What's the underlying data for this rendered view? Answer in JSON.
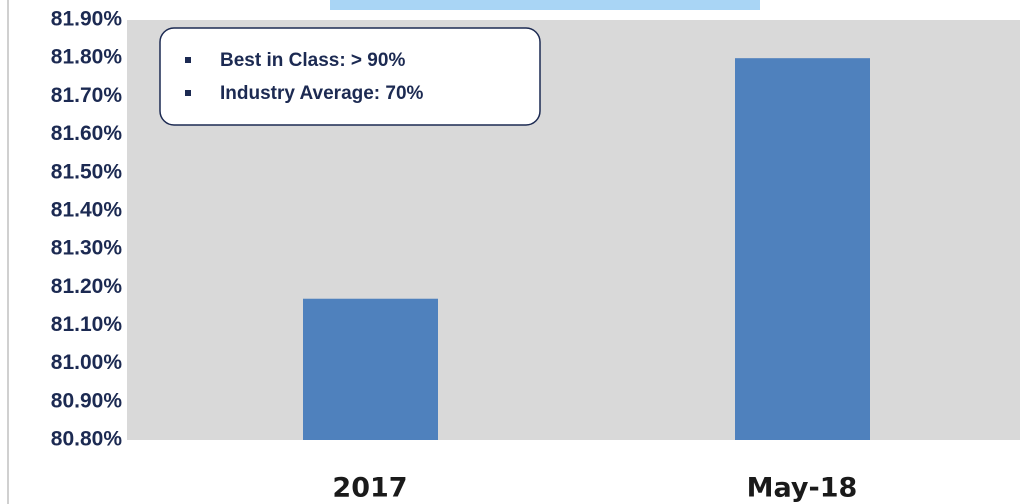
{
  "chart_data": {
    "type": "bar",
    "categories": [
      "2017",
      "May-18"
    ],
    "values": [
      81.17,
      81.8
    ],
    "color": "#4f81bd",
    "ylim": [
      80.8,
      81.9
    ],
    "yticks": [
      {
        "value": 80.8,
        "label": "80.80%"
      },
      {
        "value": 80.9,
        "label": "80.90%"
      },
      {
        "value": 81.0,
        "label": "81.00%"
      },
      {
        "value": 81.1,
        "label": "81.10%"
      },
      {
        "value": 81.2,
        "label": "81.20%"
      },
      {
        "value": 81.3,
        "label": "81.30%"
      },
      {
        "value": 81.4,
        "label": "81.40%"
      },
      {
        "value": 81.5,
        "label": "81.50%"
      },
      {
        "value": 81.6,
        "label": "81.60%"
      },
      {
        "value": 81.7,
        "label": "81.70%"
      },
      {
        "value": 81.8,
        "label": "81.80%"
      },
      {
        "value": 81.9,
        "label": "81.90%"
      }
    ],
    "annotations": [
      "Best in Class: > 90%",
      "Industry Average: 70%"
    ]
  }
}
